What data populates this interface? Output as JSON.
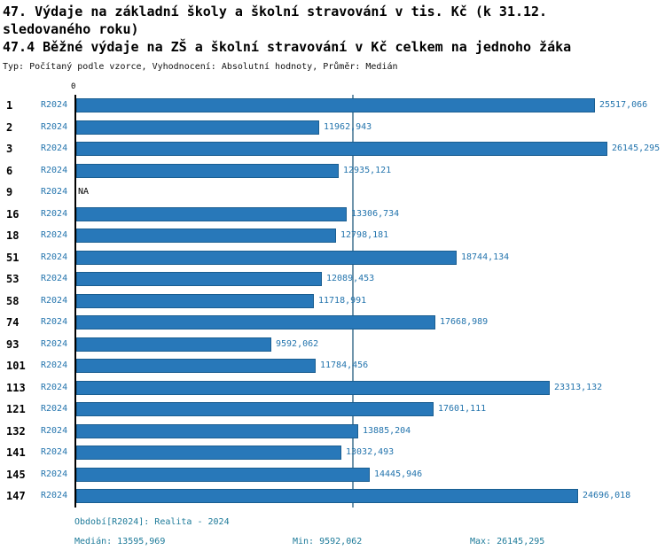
{
  "header": {
    "title_line1": "47. Výdaje na základní školy a školní stravování v tis. Kč (k 31.12. sledovaného roku)",
    "title_line2": "47.4 Běžné výdaje na ZŠ a školní stravování v Kč celkem na jednoho žáka",
    "subtitle": "Typ: Počítaný podle vzorce, Vyhodnocení: Absolutní hodnoty, Průměr: Medián"
  },
  "axis": {
    "zero_label": "0"
  },
  "chart_data": {
    "type": "bar",
    "orientation": "horizontal",
    "series_label": "R2024",
    "categories": [
      "1",
      "2",
      "3",
      "6",
      "9",
      "16",
      "18",
      "51",
      "53",
      "58",
      "74",
      "93",
      "101",
      "113",
      "121",
      "132",
      "141",
      "145",
      "147"
    ],
    "values": [
      25517.066,
      11962.943,
      26145.295,
      12935.121,
      null,
      13306.734,
      12798.181,
      18744.134,
      12089.453,
      11718.991,
      17668.989,
      9592.062,
      11784.456,
      23313.132,
      17601.111,
      13885.204,
      13032.493,
      14445.946,
      24696.018
    ],
    "value_labels": [
      "25517,066",
      "11962,943",
      "26145,295",
      "12935,121",
      "NA",
      "13306,734",
      "12798,181",
      "18744,134",
      "12089,453",
      "11718,991",
      "17668,989",
      "9592,062",
      "11784,456",
      "23313,132",
      "17601,111",
      "13885,204",
      "13032,493",
      "14445,946",
      "24696,018"
    ],
    "median_value": 13595.969,
    "xlim": [
      0,
      26145.295
    ],
    "grid": false,
    "legend": "none",
    "bar_color": "#2878b9",
    "median_line_color": "#6f94ab",
    "label_color": "#2374ad"
  },
  "footer": {
    "period": "Období[R2024]: Realita - 2024",
    "median": "Medián: 13595,969",
    "min": "Min: 9592,062",
    "max": "Max: 26145,295"
  }
}
